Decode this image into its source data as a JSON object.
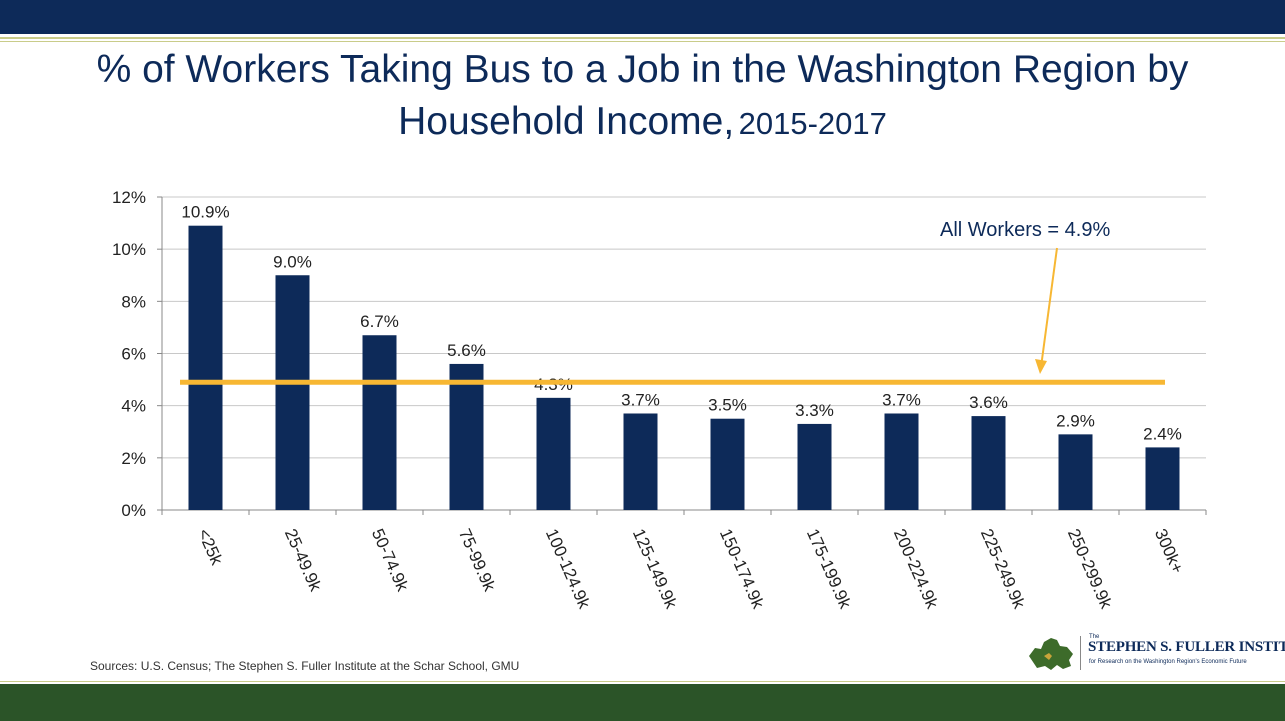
{
  "slide": {
    "title_main": "% of Workers Taking Bus to a Job in the Washington Region by Household Income,",
    "title_years": "2015-2017",
    "source": "Sources: U.S. Census; The Stephen S. Fuller Institute at the Schar School, GMU",
    "logo": {
      "the": "The",
      "name": "STEPHEN S. FULLER INSTITUTE",
      "tagline": "for Research on the Washington Region's Economic Future"
    },
    "colors": {
      "header": "#0d2a59",
      "footer": "#2b5428",
      "rule": "#c9cc8a"
    }
  },
  "chart_data": {
    "type": "bar",
    "title": "% of Workers Taking Bus to a Job in the Washington Region by Household Income, 2015-2017",
    "categories": [
      "<25k",
      "25-49.9k",
      "50-74.9k",
      "75-99.9k",
      "100-124.9k",
      "125-149.9k",
      "150-174.9k",
      "175-199.9k",
      "200-224.9k",
      "225-249.9k",
      "250-299.9k",
      "300k+"
    ],
    "values": [
      10.9,
      9.0,
      6.7,
      5.6,
      4.3,
      3.7,
      3.5,
      3.3,
      3.7,
      3.6,
      2.9,
      2.4
    ],
    "value_labels": [
      "10.9%",
      "9.0%",
      "6.7%",
      "5.6%",
      "4.3%",
      "3.7%",
      "3.5%",
      "3.3%",
      "3.7%",
      "3.6%",
      "2.9%",
      "2.4%"
    ],
    "ylim": [
      0,
      12
    ],
    "yticks": [
      0,
      2,
      4,
      6,
      8,
      10,
      12
    ],
    "ytick_labels": [
      "0%",
      "2%",
      "4%",
      "6%",
      "8%",
      "10%",
      "12%"
    ],
    "grid": true,
    "bar_color": "#0d2a59",
    "reference_line": {
      "value": 4.9,
      "label": "All Workers = 4.9%",
      "color": "#f7b733"
    }
  }
}
